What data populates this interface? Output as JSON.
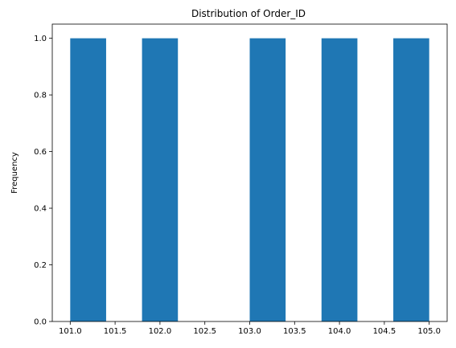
{
  "chart_data": {
    "type": "bar",
    "title": "Distribution of Order_ID",
    "xlabel": "",
    "ylabel": "Frequency",
    "bins": [
      {
        "x0": 101.0,
        "x1": 101.4,
        "count": 1
      },
      {
        "x0": 101.4,
        "x1": 101.8,
        "count": 0
      },
      {
        "x0": 101.8,
        "x1": 102.2,
        "count": 1
      },
      {
        "x0": 102.2,
        "x1": 102.6,
        "count": 0
      },
      {
        "x0": 102.6,
        "x1": 103.0,
        "count": 0
      },
      {
        "x0": 103.0,
        "x1": 103.4,
        "count": 1
      },
      {
        "x0": 103.4,
        "x1": 103.8,
        "count": 0
      },
      {
        "x0": 103.8,
        "x1": 104.2,
        "count": 1
      },
      {
        "x0": 104.2,
        "x1": 104.6,
        "count": 0
      },
      {
        "x0": 104.6,
        "x1": 105.0,
        "count": 1
      }
    ],
    "xlim": [
      100.8,
      105.2
    ],
    "ylim": [
      0,
      1.05
    ],
    "x_ticks": [
      "101.0",
      "101.5",
      "102.0",
      "102.5",
      "103.0",
      "103.5",
      "104.0",
      "104.5",
      "105.0"
    ],
    "y_ticks": [
      "0.0",
      "0.2",
      "0.4",
      "0.6",
      "0.8",
      "1.0"
    ],
    "grid": false,
    "bar_color": "#1f77b4"
  }
}
